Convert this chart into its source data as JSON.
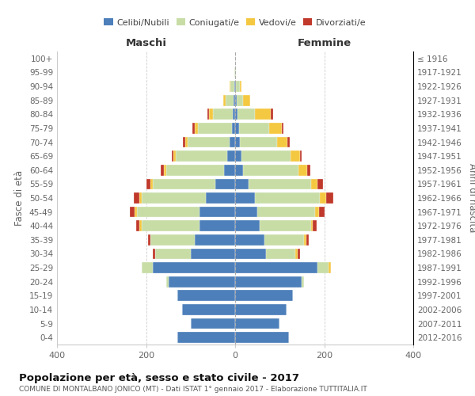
{
  "age_groups": [
    "0-4",
    "5-9",
    "10-14",
    "15-19",
    "20-24",
    "25-29",
    "30-34",
    "35-39",
    "40-44",
    "45-49",
    "50-54",
    "55-59",
    "60-64",
    "65-69",
    "70-74",
    "75-79",
    "80-84",
    "85-89",
    "90-94",
    "95-99",
    "100+"
  ],
  "birth_years": [
    "2012-2016",
    "2007-2011",
    "2002-2006",
    "1997-2001",
    "1992-1996",
    "1987-1991",
    "1982-1986",
    "1977-1981",
    "1972-1976",
    "1967-1971",
    "1962-1966",
    "1957-1961",
    "1952-1956",
    "1947-1951",
    "1942-1946",
    "1937-1941",
    "1932-1936",
    "1927-1931",
    "1922-1926",
    "1917-1921",
    "≤ 1916"
  ],
  "maschi": {
    "celibi": [
      130,
      100,
      120,
      130,
      150,
      185,
      100,
      90,
      80,
      80,
      65,
      45,
      25,
      18,
      12,
      8,
      5,
      3,
      2,
      0,
      0
    ],
    "coniugati": [
      0,
      0,
      0,
      0,
      5,
      25,
      80,
      100,
      130,
      140,
      145,
      140,
      130,
      115,
      95,
      75,
      45,
      18,
      8,
      1,
      0
    ],
    "vedovi": [
      0,
      0,
      0,
      0,
      0,
      0,
      0,
      0,
      5,
      5,
      5,
      5,
      5,
      5,
      5,
      8,
      8,
      5,
      2,
      0,
      0
    ],
    "divorziati": [
      0,
      0,
      0,
      0,
      0,
      0,
      5,
      5,
      8,
      12,
      12,
      10,
      8,
      5,
      5,
      5,
      5,
      0,
      0,
      0,
      0
    ]
  },
  "femmine": {
    "nubili": [
      120,
      100,
      115,
      130,
      150,
      185,
      70,
      65,
      55,
      50,
      45,
      30,
      18,
      15,
      10,
      8,
      5,
      3,
      2,
      0,
      0
    ],
    "coniugate": [
      0,
      0,
      0,
      0,
      5,
      25,
      65,
      90,
      115,
      130,
      145,
      140,
      125,
      110,
      85,
      68,
      40,
      15,
      8,
      1,
      0
    ],
    "vedove": [
      0,
      0,
      0,
      0,
      0,
      5,
      5,
      5,
      5,
      8,
      15,
      15,
      18,
      20,
      22,
      28,
      35,
      15,
      5,
      0,
      0
    ],
    "divorziate": [
      0,
      0,
      0,
      0,
      0,
      0,
      5,
      5,
      8,
      12,
      15,
      12,
      8,
      5,
      5,
      5,
      5,
      0,
      0,
      0,
      0
    ]
  },
  "colors": {
    "celibi": "#4d7fba",
    "coniugati": "#c8dda6",
    "vedovi": "#f5c842",
    "divorziati": "#c0392b"
  },
  "xlim": 400,
  "title": "Popolazione per età, sesso e stato civile - 2017",
  "subtitle": "COMUNE DI MONTALBANO JONICO (MT) - Dati ISTAT 1° gennaio 2017 - Elaborazione TUTTITALIA.IT",
  "xlabel_left": "Maschi",
  "xlabel_right": "Femmine",
  "ylabel": "Fasce di età",
  "ylabel_right": "Anni di nascita"
}
